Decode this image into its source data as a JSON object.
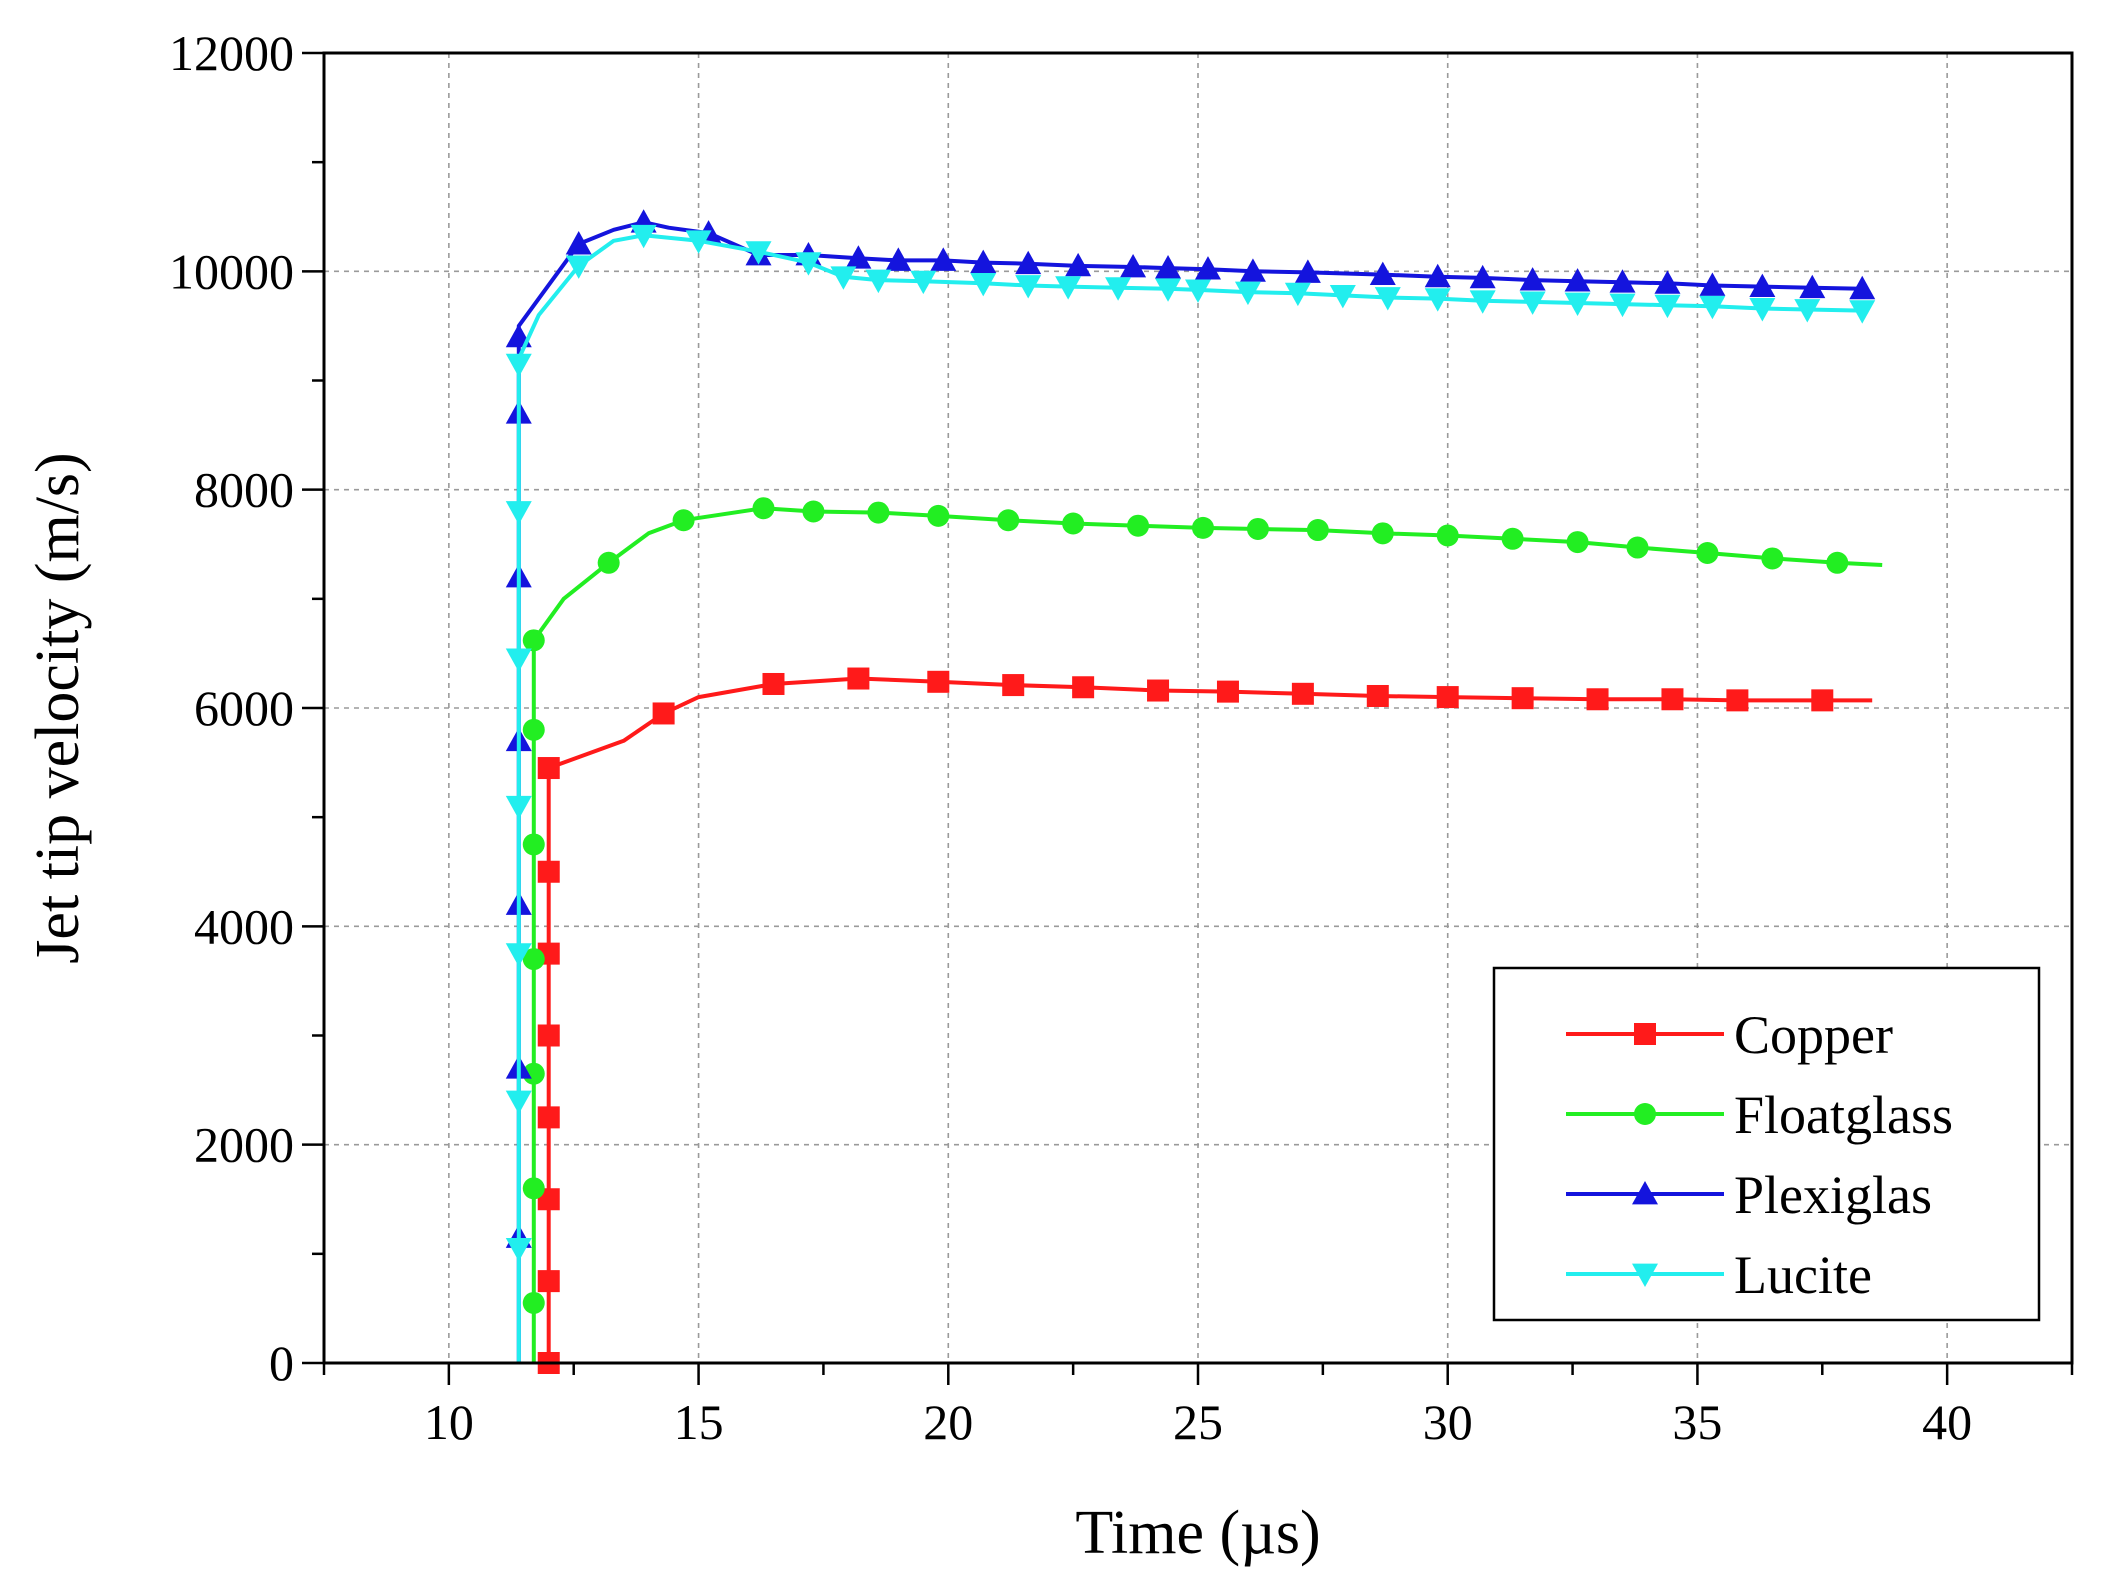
{
  "chart_data": {
    "type": "line",
    "title": "",
    "xlabel": "Time (µs)",
    "ylabel": "Jet tip velocity  (m/s)",
    "xlim": [
      7.5,
      42.5
    ],
    "ylim": [
      0,
      12000
    ],
    "xticks": [
      10,
      15,
      20,
      25,
      30,
      35,
      40
    ],
    "yticks": [
      0,
      2000,
      4000,
      6000,
      8000,
      10000,
      12000
    ],
    "grid": true,
    "legend_position": "bottom-right",
    "series": [
      {
        "name": "Copper",
        "color": "#ff1a1a",
        "marker": "square",
        "x": [
          12.0,
          12.0,
          12.0,
          12.0,
          12.0,
          12.0,
          12.0,
          12.0,
          13.5,
          14.3,
          15.0,
          16.5,
          18.2,
          19.8,
          21.3,
          22.7,
          24.2,
          25.6,
          27.1,
          28.6,
          30.0,
          31.5,
          33.0,
          34.5,
          35.8,
          37.5,
          38.5
        ],
        "y": [
          0,
          750,
          1500,
          2250,
          3000,
          3750,
          4500,
          5450,
          5700,
          5950,
          6100,
          6220,
          6270,
          6240,
          6210,
          6190,
          6160,
          6150,
          6130,
          6110,
          6100,
          6090,
          6080,
          6080,
          6070,
          6070,
          6070
        ],
        "marker_x": [
          12.0,
          12.0,
          12.0,
          12.0,
          12.0,
          12.0,
          12.0,
          12.0,
          14.3,
          16.5,
          18.2,
          19.8,
          21.3,
          22.7,
          24.2,
          25.6,
          27.1,
          28.6,
          30.0,
          31.5,
          33.0,
          34.5,
          35.8,
          37.5
        ],
        "marker_y": [
          0,
          750,
          1500,
          2250,
          3000,
          3750,
          4500,
          5450,
          5950,
          6220,
          6270,
          6240,
          6210,
          6190,
          6160,
          6150,
          6130,
          6110,
          6100,
          6090,
          6080,
          6080,
          6070,
          6070
        ]
      },
      {
        "name": "Floatglass",
        "color": "#22ee22",
        "marker": "circle",
        "x": [
          11.7,
          11.7,
          11.7,
          11.7,
          11.7,
          11.7,
          11.7,
          11.7,
          11.7,
          12.3,
          13.2,
          14.0,
          14.7,
          16.3,
          17.3,
          18.6,
          19.8,
          21.2,
          22.5,
          23.8,
          25.1,
          26.2,
          27.4,
          28.7,
          30.0,
          31.3,
          32.6,
          33.8,
          35.2,
          36.5,
          37.8,
          38.7
        ],
        "y": [
          0,
          550,
          1600,
          2650,
          3700,
          4750,
          5800,
          6050,
          6620,
          7000,
          7330,
          7600,
          7720,
          7830,
          7800,
          7790,
          7760,
          7720,
          7690,
          7670,
          7650,
          7640,
          7630,
          7600,
          7580,
          7550,
          7520,
          7470,
          7420,
          7370,
          7330,
          7310
        ],
        "marker_x": [
          11.7,
          11.7,
          11.7,
          11.7,
          11.7,
          11.7,
          11.7,
          13.2,
          14.7,
          16.3,
          17.3,
          18.6,
          19.8,
          21.2,
          22.5,
          23.8,
          25.1,
          26.2,
          27.4,
          28.7,
          30.0,
          31.3,
          32.6,
          33.8,
          35.2,
          36.5,
          37.8
        ],
        "marker_y": [
          550,
          1600,
          2650,
          3700,
          4750,
          5800,
          6620,
          7330,
          7720,
          7830,
          7800,
          7790,
          7760,
          7720,
          7690,
          7670,
          7650,
          7640,
          7630,
          7600,
          7580,
          7550,
          7520,
          7470,
          7420,
          7370,
          7330
        ]
      },
      {
        "name": "Plexiglas",
        "color": "#1414dd",
        "marker": "triangle-up",
        "x": [
          11.4,
          11.4,
          11.4,
          11.4,
          11.4,
          11.4,
          11.4,
          11.4,
          11.4,
          11.4,
          11.8,
          12.6,
          13.3,
          13.9,
          14.4,
          15.2,
          16.2,
          17.2,
          18.2,
          19.0,
          19.9,
          20.7,
          21.6,
          22.6,
          23.7,
          24.4,
          25.2,
          26.1,
          27.2,
          28.7,
          29.8,
          30.7,
          31.7,
          32.6,
          33.5,
          34.4,
          35.3,
          36.3,
          37.3,
          38.3
        ],
        "y": [
          0,
          1150,
          2700,
          4200,
          5700,
          7200,
          8700,
          9400,
          9500,
          9500,
          9750,
          10250,
          10380,
          10450,
          10400,
          10350,
          10150,
          10150,
          10120,
          10100,
          10100,
          10080,
          10070,
          10050,
          10040,
          10030,
          10020,
          10000,
          9990,
          9970,
          9950,
          9940,
          9920,
          9910,
          9900,
          9890,
          9870,
          9860,
          9850,
          9840
        ],
        "marker_x": [
          11.4,
          11.4,
          11.4,
          11.4,
          11.4,
          11.4,
          11.4,
          12.6,
          13.9,
          15.2,
          16.2,
          17.2,
          18.2,
          19.0,
          19.9,
          20.7,
          21.6,
          22.6,
          23.7,
          24.4,
          25.2,
          26.1,
          27.2,
          28.7,
          29.8,
          30.7,
          31.7,
          32.6,
          33.5,
          34.4,
          35.3,
          36.3,
          37.3,
          38.3
        ],
        "marker_y": [
          1150,
          2700,
          4200,
          5700,
          7200,
          8700,
          9400,
          10250,
          10450,
          10350,
          10150,
          10150,
          10120,
          10100,
          10100,
          10080,
          10070,
          10050,
          10040,
          10030,
          10020,
          10000,
          9990,
          9970,
          9950,
          9940,
          9920,
          9910,
          9900,
          9890,
          9870,
          9860,
          9850,
          9840
        ]
      },
      {
        "name": "Lucite",
        "color": "#22eeee",
        "marker": "triangle-down",
        "x": [
          11.4,
          11.4,
          11.4,
          11.4,
          11.4,
          11.4,
          11.4,
          11.4,
          11.4,
          11.4,
          11.8,
          12.6,
          13.3,
          13.9,
          15.0,
          16.2,
          17.2,
          17.9,
          18.6,
          19.5,
          20.7,
          21.6,
          22.4,
          23.4,
          24.4,
          25.0,
          26.0,
          27.0,
          27.9,
          28.8,
          29.8,
          30.7,
          31.7,
          32.6,
          33.5,
          34.4,
          35.3,
          36.3,
          37.2,
          38.3
        ],
        "y": [
          0,
          1050,
          2400,
          3750,
          5100,
          6450,
          7800,
          9150,
          9200,
          9200,
          9600,
          10050,
          10280,
          10330,
          10280,
          10180,
          10080,
          9950,
          9920,
          9910,
          9890,
          9870,
          9860,
          9850,
          9840,
          9830,
          9810,
          9800,
          9780,
          9760,
          9750,
          9730,
          9720,
          9710,
          9700,
          9690,
          9680,
          9660,
          9650,
          9640
        ],
        "marker_x": [
          11.4,
          11.4,
          11.4,
          11.4,
          11.4,
          11.4,
          11.4,
          12.6,
          13.9,
          15.0,
          16.2,
          17.2,
          17.9,
          18.6,
          19.5,
          20.7,
          21.6,
          22.4,
          23.4,
          24.4,
          25.0,
          26.0,
          27.0,
          27.9,
          28.8,
          29.8,
          30.7,
          31.7,
          32.6,
          33.5,
          34.4,
          35.3,
          36.3,
          37.2,
          38.3
        ],
        "marker_y": [
          1050,
          2400,
          3750,
          5100,
          6450,
          7800,
          9150,
          10050,
          10330,
          10280,
          10180,
          10080,
          9950,
          9920,
          9910,
          9890,
          9870,
          9860,
          9850,
          9840,
          9830,
          9810,
          9800,
          9780,
          9760,
          9750,
          9730,
          9720,
          9710,
          9700,
          9690,
          9680,
          9660,
          9650,
          9640
        ]
      }
    ]
  }
}
